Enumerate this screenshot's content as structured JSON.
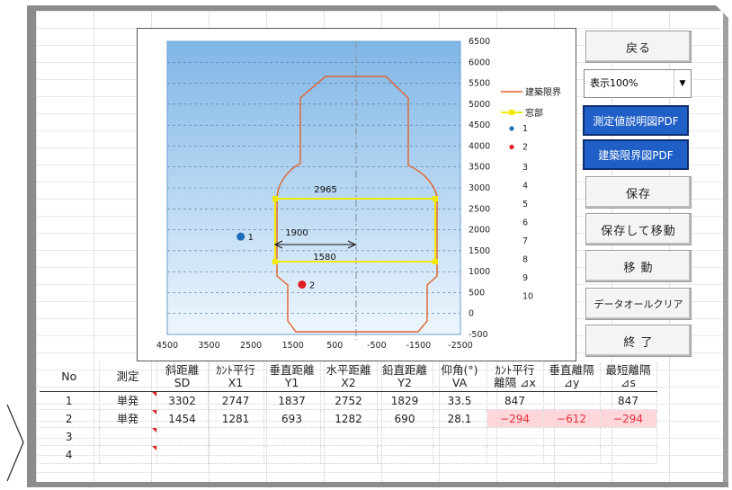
{
  "buttons": {
    "back": "戻る",
    "pdf_measure": "測定値説明図PDF",
    "pdf_limit": "建築限界図PDF",
    "save": "保存",
    "save_move": "保存して移動",
    "move": "移 動",
    "clear": "データオールクリア",
    "exit": "終 了"
  },
  "zoom_select": {
    "value": "表示100%"
  },
  "chart": {
    "x_ticks": [
      "4500",
      "3500",
      "2500",
      "1500",
      "500",
      "-500",
      "-1500",
      "-2500"
    ],
    "y_ticks": [
      "6500",
      "6000",
      "5500",
      "5000",
      "4500",
      "4000",
      "3500",
      "3000",
      "2500",
      "2000",
      "1500",
      "1000",
      "500",
      "0",
      "-500"
    ],
    "legend": {
      "line": "建築限界",
      "window": "窓部",
      "items": [
        "1",
        "2",
        "3",
        "4",
        "5",
        "6",
        "7",
        "8",
        "9",
        "10"
      ]
    },
    "annotations": {
      "dim_top": "2965",
      "dim_mid": "1900",
      "dim_low": "1580",
      "pt1": "1",
      "pt2": "2"
    },
    "colors": {
      "limit_line": "#e0632f",
      "window": "#f2ea00",
      "pt1": "#1e6fb8",
      "pt2": "#e01c24",
      "sky_top": "#7fb6e6",
      "sky_bottom": "#eaf4fc"
    }
  },
  "chart_data": {
    "type": "scatter",
    "x_ticks": [
      4500,
      3500,
      2500,
      1500,
      500,
      -500,
      -1500,
      -2500
    ],
    "xlim": [
      4500,
      -2500
    ],
    "ylim": [
      -500,
      6500
    ],
    "points": [
      {
        "name": "1",
        "x": 2747,
        "y": 1837
      },
      {
        "name": "2",
        "x": 1281,
        "y": 693
      }
    ]
  },
  "table": {
    "headers": [
      {
        "l1": "No",
        "l2": ""
      },
      {
        "l1": "測定",
        "l2": ""
      },
      {
        "l1": "斜距離",
        "l2": "SD"
      },
      {
        "l1": "ｶﾝﾄ平行",
        "l2": "X1"
      },
      {
        "l1": "垂直距離",
        "l2": "Y1"
      },
      {
        "l1": "水平距離",
        "l2": "X2"
      },
      {
        "l1": "鉛直距離",
        "l2": "Y2"
      },
      {
        "l1": "仰角(°)",
        "l2": "VA"
      },
      {
        "l1": "ｶﾝﾄ平行",
        "l2": "離隔 ⊿x"
      },
      {
        "l1": "垂直離隔",
        "l2": "⊿y"
      },
      {
        "l1": "最短離隔",
        "l2": "⊿s"
      }
    ],
    "rows": [
      [
        "1",
        "単発",
        "3302",
        "2747",
        "1837",
        "2752",
        "1829",
        "33.5",
        "847",
        "",
        "847"
      ],
      [
        "2",
        "単発",
        "1454",
        "1281",
        "693",
        "1282",
        "690",
        "28.1",
        "−294",
        "−612",
        "−294"
      ],
      [
        "3",
        "",
        "",
        "",
        "",
        "",
        "",
        "",
        "",
        "",
        ""
      ],
      [
        "4",
        "",
        "",
        "",
        "",
        "",
        "",
        "",
        "",
        "",
        ""
      ]
    ]
  }
}
